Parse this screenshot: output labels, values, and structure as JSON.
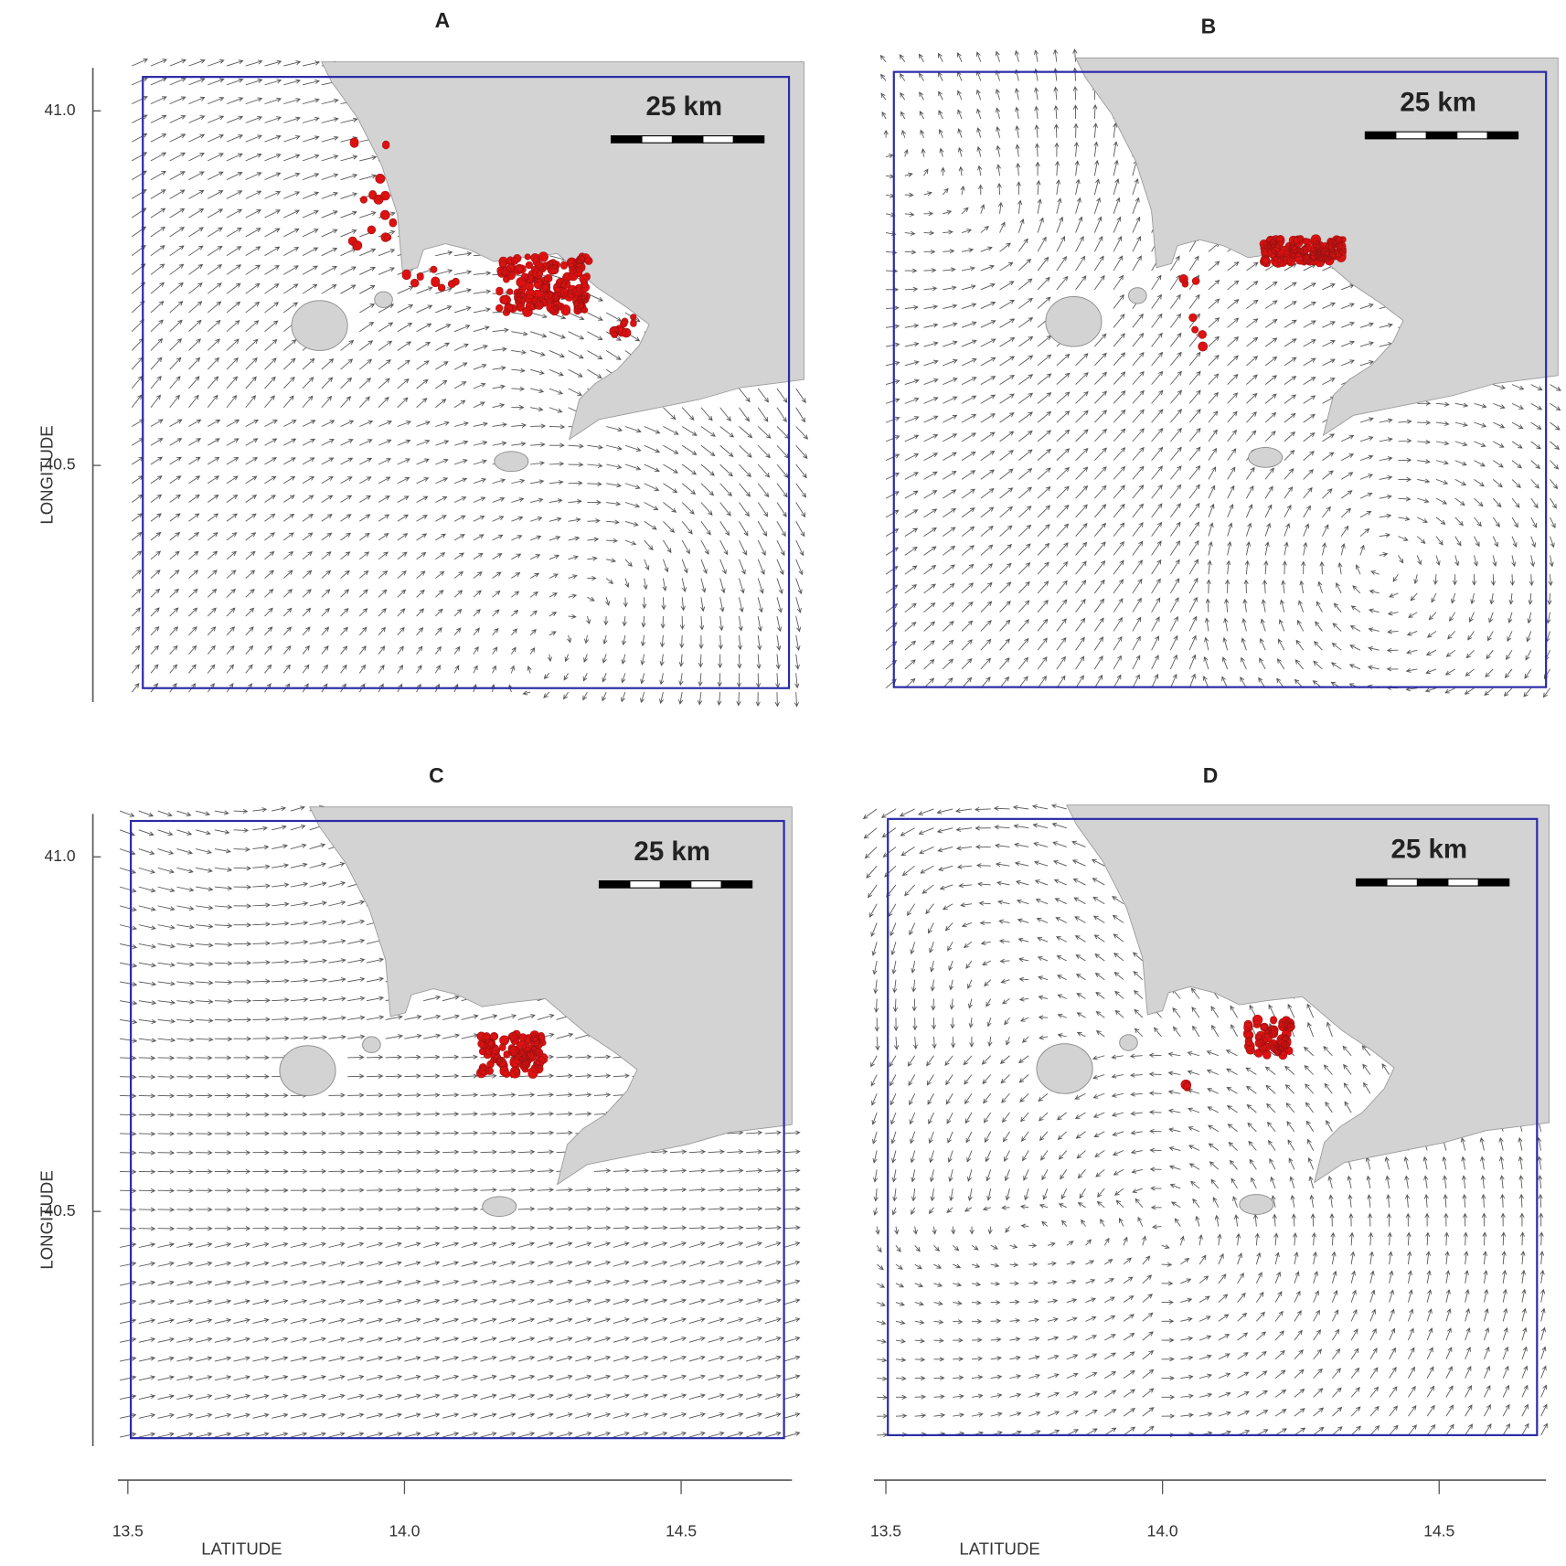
{
  "panels": [
    {
      "label": "A",
      "scale_label": "25 km"
    },
    {
      "label": "B",
      "scale_label": "25 km"
    },
    {
      "label": "C",
      "scale_label": "25 km"
    },
    {
      "label": "D",
      "scale_label": "25 km"
    }
  ],
  "y_axis": {
    "label": "LONGITUDE",
    "ticks": [
      {
        "value": 41,
        "label": "41.0"
      },
      40.5
    ]
  },
  "x_axis": {
    "label": "LATITUDE",
    "ticks": [
      13.5,
      {
        "value": 14,
        "label": "14.0"
      },
      14.5
    ]
  }
}
